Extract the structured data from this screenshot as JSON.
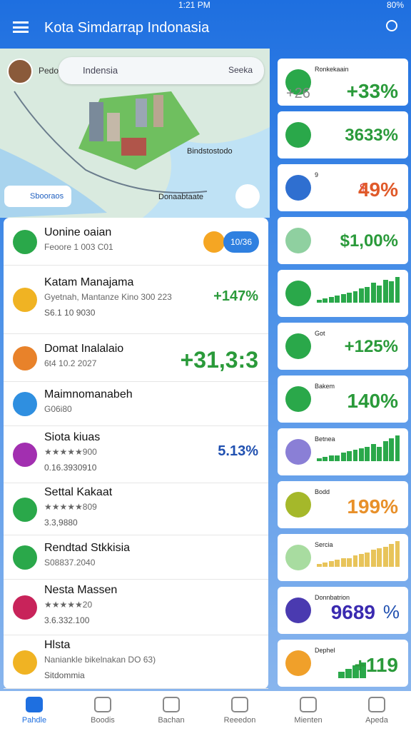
{
  "status": {
    "time": "1:21 PM",
    "battery": "80%"
  },
  "header": {
    "title": "Kota Simdarrap Indonasia"
  },
  "map": {
    "search_left": "Pedo",
    "search": "Indensia",
    "search_right": "Seeka",
    "place": "Bindstostodo",
    "filter": "Sbooraos",
    "place2": "Donaabtaate"
  },
  "list": [
    {
      "title": "Uonine oaian",
      "subtitle": "Feoore 1 003 C01",
      "badge": "10/36",
      "color": "#2aa84a"
    },
    {
      "title": "Katam Manajama",
      "subtitle": "Gyetnah, Mantanze Kino 300 223",
      "detail": "S6.1 10 9030",
      "value": "+147%",
      "color": "#f0b323"
    },
    {
      "title": "Domat Inalalaio",
      "subtitle": "6t4 10.2 2027",
      "value": "+31,3:3",
      "color": "#e8822a"
    },
    {
      "title": "Maimnomanabeh",
      "subtitle": "G06i80",
      "color": "#2f8fe0"
    },
    {
      "title": "Siota kiuas",
      "subtitle": "★★★★★900",
      "detail": "0.16.3930910",
      "value": "5.13%",
      "color": "#a22fb0"
    },
    {
      "title": "Settal Kakaat",
      "subtitle": "★★★★★809",
      "detail": "3.3,9880",
      "color": "#2aa84a"
    },
    {
      "title": "Rendtad Stkkisia",
      "subtitle": "S08837.2040",
      "color": "#2aa84a"
    },
    {
      "title": "Nesta Massen",
      "subtitle": "★★★★★20",
      "detail": "3.6.332.100",
      "color": "#c8235a"
    },
    {
      "title": "Hlsta",
      "subtitle": "Naniankle bikelnakan DO 63)",
      "detail": "Sitdommia",
      "color": "#f0b323"
    }
  ],
  "cards": [
    {
      "label": "Ronkekaain",
      "left": "+26",
      "value": "+33%",
      "color": "#2aa84a"
    },
    {
      "value": "3633%",
      "color": "#2aa84a"
    },
    {
      "label": "9",
      "left": "$",
      "value": "49%",
      "color": "#2f6fd0"
    },
    {
      "value": "$1,00%",
      "color": "#8fd0a0"
    },
    {
      "bars": [
        1,
        1.5,
        2,
        2.5,
        3,
        3.5,
        4,
        5,
        5.5,
        7,
        6,
        8,
        7.5,
        9
      ],
      "color": "#2aa84a"
    },
    {
      "label": "Got",
      "value": "+125%",
      "color": "#2aa84a"
    },
    {
      "label": "Bakem",
      "value": "140%",
      "color": "#2aa84a"
    },
    {
      "label": "Betnea",
      "bars": [
        1,
        1.5,
        2,
        2,
        3,
        3.5,
        4,
        4.5,
        5,
        6,
        5,
        7,
        8,
        9
      ],
      "color": "#8a7fd6"
    },
    {
      "label": "Bodd",
      "value": "199%",
      "color": "#a5b82a"
    },
    {
      "label": "Sercia",
      "bars": [
        1,
        1.5,
        2,
        2.5,
        3,
        3,
        4,
        4.5,
        5,
        6,
        6.5,
        7,
        8,
        9
      ],
      "color": "#a8dca0"
    },
    {
      "label": "Donnbatrion",
      "value": "9689",
      "right": "%",
      "color": "#4a3ab0"
    },
    {
      "label": "Dephel",
      "bars": [
        2,
        3,
        4,
        5
      ],
      "value": "+119",
      "color": "#f0a02a"
    }
  ],
  "nav": [
    "Pahdle",
    "Boodis",
    "Bachan",
    "Reeedon",
    "Mienten",
    "Apeda"
  ]
}
